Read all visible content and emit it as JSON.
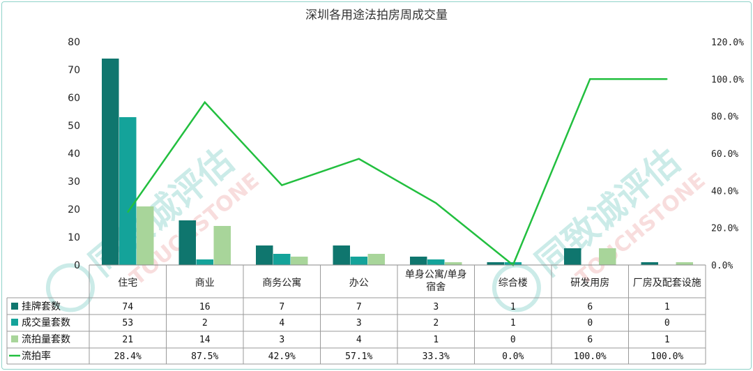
{
  "chart_data": {
    "type": "bar",
    "title": "深圳各用途法拍房周成交量",
    "categories": [
      "住宅",
      "商业",
      "商务公寓",
      "办公",
      "单身公寓/单身宿舍",
      "综合楼",
      "研发用房",
      "厂房及配套设施"
    ],
    "category_lines": [
      [
        "住宅"
      ],
      [
        "商业"
      ],
      [
        "商务公寓"
      ],
      [
        "办公"
      ],
      [
        "单身公寓/单身",
        "宿舍"
      ],
      [
        "综合楼"
      ],
      [
        "研发用房"
      ],
      [
        "厂房及配套设施"
      ]
    ],
    "series": [
      {
        "name": "挂牌套数",
        "type": "bar",
        "axis": "left",
        "color": "#0f766e",
        "values": [
          74,
          16,
          7,
          7,
          3,
          1,
          6,
          1
        ],
        "labels": [
          "74",
          "16",
          "7",
          "7",
          "3",
          "1",
          "6",
          "1"
        ]
      },
      {
        "name": "成交量套数",
        "type": "bar",
        "axis": "left",
        "color": "#14a39a",
        "values": [
          53,
          2,
          4,
          3,
          2,
          1,
          0,
          0
        ],
        "labels": [
          "53",
          "2",
          "4",
          "3",
          "2",
          "1",
          "0",
          "0"
        ]
      },
      {
        "name": "流拍量套数",
        "type": "bar",
        "axis": "left",
        "color": "#a8d59a",
        "values": [
          21,
          14,
          3,
          4,
          1,
          0,
          6,
          1
        ],
        "labels": [
          "21",
          "14",
          "3",
          "4",
          "1",
          "0",
          "6",
          "1"
        ]
      },
      {
        "name": "流拍率",
        "type": "line",
        "axis": "right",
        "color": "#22bf3f",
        "values": [
          28.4,
          87.5,
          42.9,
          57.1,
          33.3,
          0.0,
          100.0,
          100.0
        ],
        "labels": [
          "28.4%",
          "87.5%",
          "42.9%",
          "57.1%",
          "33.3%",
          "0.0%",
          "100.0%",
          "100.0%"
        ]
      }
    ],
    "y_left": {
      "ylim": [
        0,
        80
      ],
      "ticks": [
        "0",
        "10",
        "20",
        "30",
        "40",
        "50",
        "60",
        "70",
        "80"
      ]
    },
    "y_right": {
      "ylim": [
        0,
        120
      ],
      "ticks": [
        "0.0%",
        "20.0%",
        "40.0%",
        "60.0%",
        "80.0%",
        "100.0%",
        "120.0%"
      ]
    },
    "grid": false,
    "legend": "data-table"
  },
  "watermark": {
    "brand_cn": "同致诚评估",
    "brand_en": "TOUCHSTONE"
  }
}
